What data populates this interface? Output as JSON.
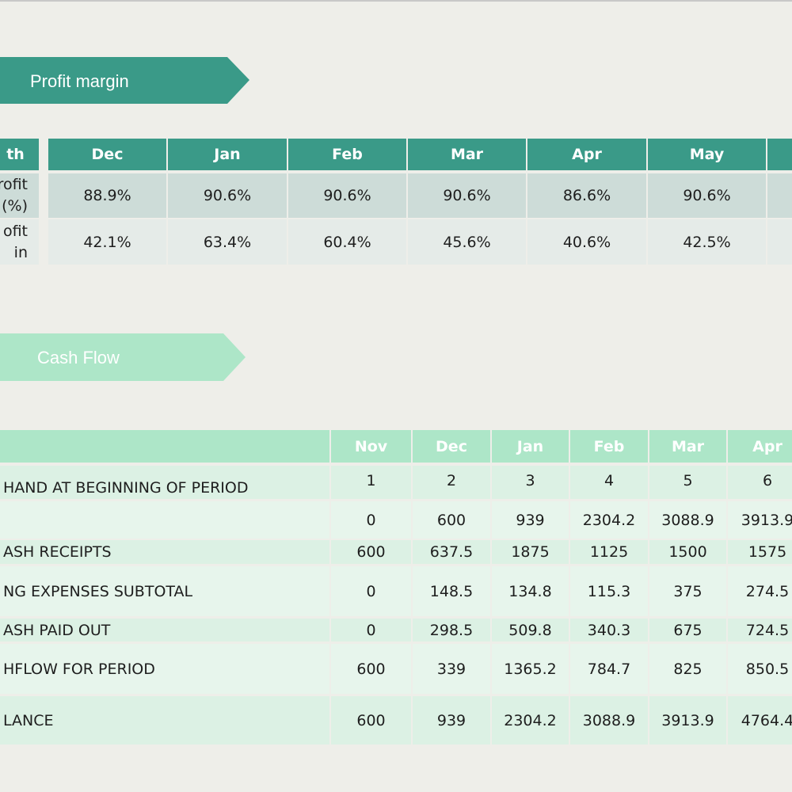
{
  "profit_margin": {
    "title": "Profit margin",
    "header": [
      "th",
      "Dec",
      "Jan",
      "Feb",
      "Mar",
      "Apr",
      "May"
    ],
    "rows": [
      {
        "label": [
          "rofit",
          "(%)"
        ],
        "cells": [
          "88.9%",
          "90.6%",
          "90.6%",
          "90.6%",
          "86.6%",
          "90.6%"
        ]
      },
      {
        "label": [
          "ofit",
          "in"
        ],
        "cells": [
          "42.1%",
          "63.4%",
          "60.4%",
          "45.6%",
          "40.6%",
          "42.5%"
        ]
      }
    ]
  },
  "cash_flow": {
    "title": "Cash Flow",
    "header": [
      "Nov",
      "Dec",
      "Jan",
      "Feb",
      "Mar",
      "Apr"
    ],
    "rows": [
      {
        "label": "HAND AT BEGINNING OF PERIOD",
        "cells": [
          "1",
          "2",
          "3",
          "4",
          "5",
          "6"
        ]
      },
      {
        "cells": [
          "0",
          "600",
          "939",
          "2304.2",
          "3088.9",
          "3913.9"
        ]
      },
      {
        "label": "ASH RECEIPTS",
        "cells": [
          "600",
          "637.5",
          "1875",
          "1125",
          "1500",
          "1575"
        ]
      },
      {
        "label": "NG EXPENSES SUBTOTAL",
        "cells": [
          "0",
          "148.5",
          "134.8",
          "115.3",
          "375",
          "274.5"
        ]
      },
      {
        "label": "ASH PAID OUT",
        "cells": [
          "0",
          "298.5",
          "509.8",
          "340.3",
          "675",
          "724.5"
        ]
      },
      {
        "label": "HFLOW FOR PERIOD",
        "cells": [
          "600",
          "339",
          "1365.2",
          "784.7",
          "825",
          "850.5"
        ]
      },
      {
        "label": "LANCE",
        "cells": [
          "600",
          "939",
          "2304.2",
          "3088.9",
          "3913.9",
          "4764.4"
        ]
      }
    ]
  }
}
